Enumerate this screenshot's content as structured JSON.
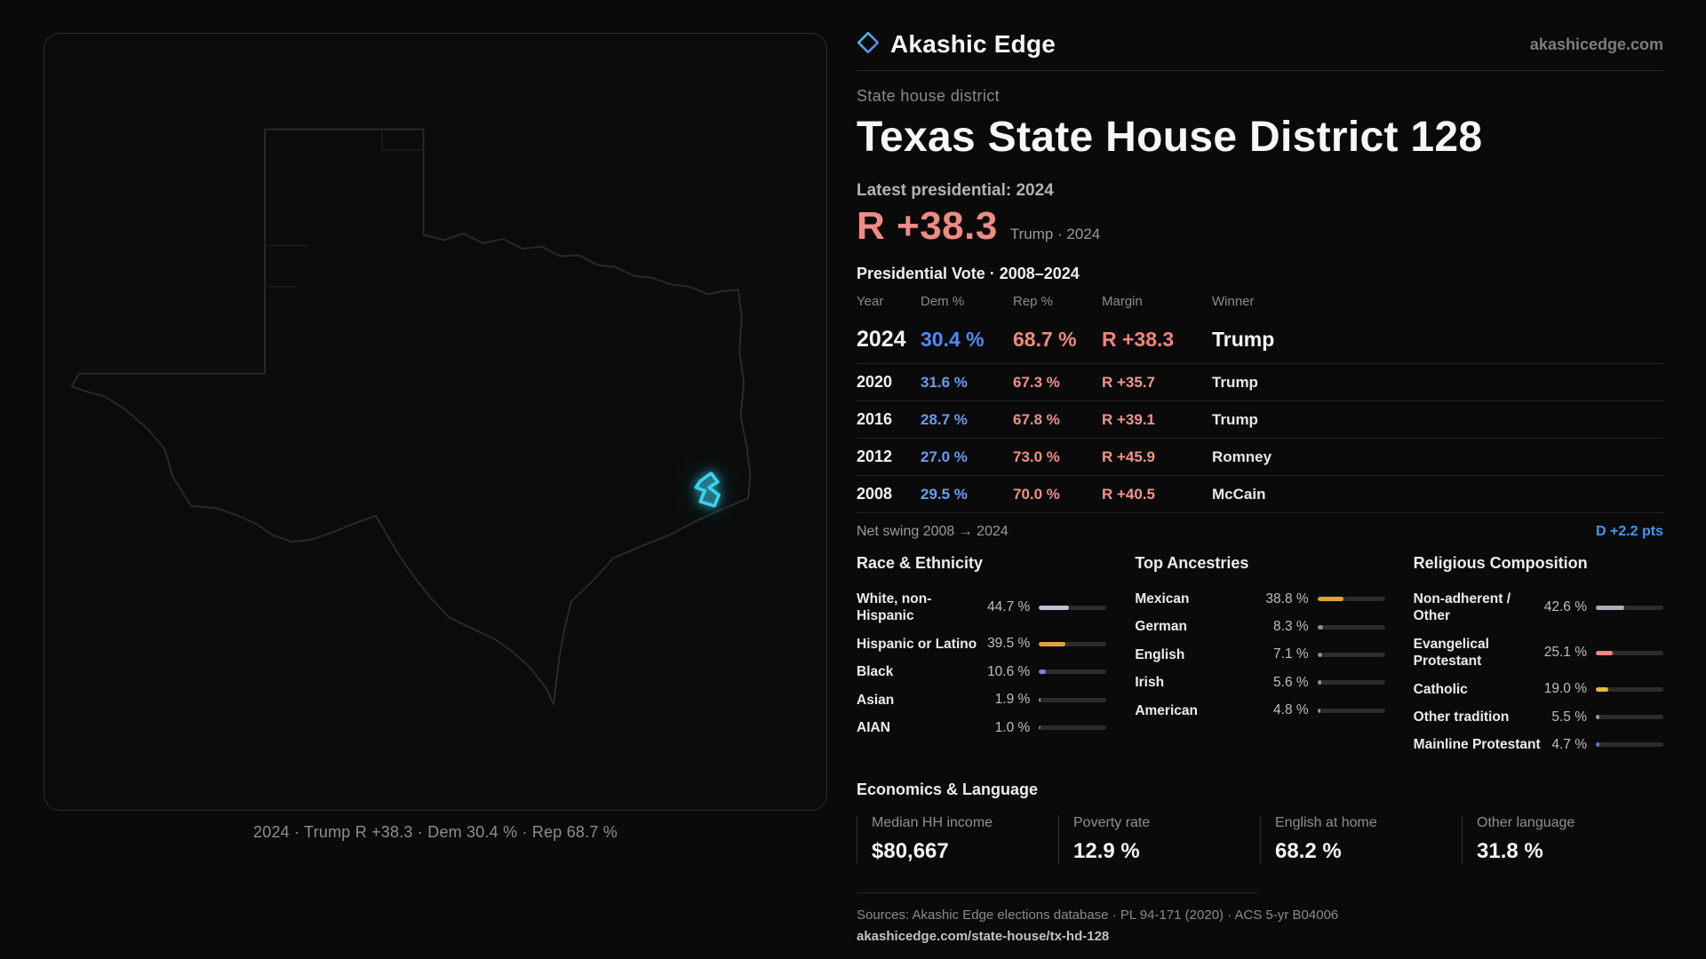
{
  "brand": {
    "name": "Akashic Edge",
    "site": "akashicedge.com"
  },
  "map": {
    "caption": "2024 · Trump R +38.3 · Dem 30.4 % · Rep 68.7 %"
  },
  "page": {
    "kicker": "State house district",
    "title": "Texas State House District 128"
  },
  "latest": {
    "label": "Latest presidential: 2024",
    "value": "R +38.3",
    "note": "Trump · 2024"
  },
  "table": {
    "title": "Presidential Vote · 2008–2024",
    "columns": [
      "Year",
      "Dem %",
      "Rep %",
      "Margin",
      "Winner"
    ],
    "rows": [
      {
        "year": "2024",
        "dem": "30.4 %",
        "rep": "68.7 %",
        "margin": "R +38.3",
        "winner": "Trump"
      },
      {
        "year": "2020",
        "dem": "31.6 %",
        "rep": "67.3 %",
        "margin": "R +35.7",
        "winner": "Trump"
      },
      {
        "year": "2016",
        "dem": "28.7 %",
        "rep": "67.8 %",
        "margin": "R +39.1",
        "winner": "Trump"
      },
      {
        "year": "2012",
        "dem": "27.0 %",
        "rep": "73.0 %",
        "margin": "R +45.9",
        "winner": "Romney"
      },
      {
        "year": "2008",
        "dem": "29.5 %",
        "rep": "70.0 %",
        "margin": "R +40.5",
        "winner": "McCain"
      }
    ]
  },
  "swing": {
    "label": "Net swing 2008 → 2024",
    "value": "D +2.2 pts"
  },
  "demographics": {
    "race": {
      "title": "Race & Ethnicity",
      "rows": [
        {
          "label": "White, non-Hispanic",
          "value": "44.7 %",
          "pct": 44.7,
          "color": "#b9c3d3"
        },
        {
          "label": "Hispanic or Latino",
          "value": "39.5 %",
          "pct": 39.5,
          "color": "#e0a43e"
        },
        {
          "label": "Black",
          "value": "10.6 %",
          "pct": 10.6,
          "color": "#8b7bef"
        },
        {
          "label": "Asian",
          "value": "1.9 %",
          "pct": 1.9,
          "color": "#5fb389"
        },
        {
          "label": "AIAN",
          "value": "1.0 %",
          "pct": 1.0,
          "color": "#c2604a"
        }
      ]
    },
    "ancestries": {
      "title": "Top Ancestries",
      "rows": [
        {
          "label": "Mexican",
          "value": "38.8 %",
          "pct": 38.8,
          "color": "#d9a53e"
        },
        {
          "label": "German",
          "value": "8.3 %",
          "pct": 8.3,
          "color": "#8f8f96"
        },
        {
          "label": "English",
          "value": "7.1 %",
          "pct": 7.1,
          "color": "#8f8f96"
        },
        {
          "label": "Irish",
          "value": "5.6 %",
          "pct": 5.6,
          "color": "#8f8f96"
        },
        {
          "label": "American",
          "value": "4.8 %",
          "pct": 4.8,
          "color": "#8f8f96"
        }
      ]
    },
    "religion": {
      "title": "Religious Composition",
      "rows": [
        {
          "label": "Non-adherent / Other",
          "value": "42.6 %",
          "pct": 42.6,
          "color": "#a9aebc"
        },
        {
          "label": "Evangelical Protestant",
          "value": "25.1 %",
          "pct": 25.1,
          "color": "#ea8b82"
        },
        {
          "label": "Catholic",
          "value": "19.0 %",
          "pct": 19.0,
          "color": "#e0b93e"
        },
        {
          "label": "Other tradition",
          "value": "5.5 %",
          "pct": 5.5,
          "color": "#9a9aa2"
        },
        {
          "label": "Mainline Protestant",
          "value": "4.7 %",
          "pct": 4.7,
          "color": "#4d7df0"
        }
      ]
    }
  },
  "economics": {
    "title": "Economics & Language",
    "stats": [
      {
        "label": "Median HH income",
        "value": "$80,667"
      },
      {
        "label": "Poverty rate",
        "value": "12.9 %"
      },
      {
        "label": "English at home",
        "value": "68.2 %"
      },
      {
        "label": "Other language",
        "value": "31.8 %"
      }
    ]
  },
  "footer": {
    "sources": "Sources: Akashic Edge elections database · PL 94-171 (2020) · ACS 5-yr B04006",
    "url": "akashicedge.com/state-house/tx-hd-128"
  },
  "colors": {
    "accent_cyan": "#3ad1ef",
    "dem_blue": "#6c9bf2",
    "rep_red": "#ef8f86",
    "swing_blue": "#3f9bf5"
  }
}
